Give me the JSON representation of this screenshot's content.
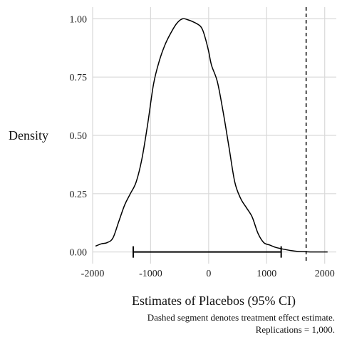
{
  "chart_data": {
    "type": "line",
    "xlabel": "Estimates of Placebos (95% CI)",
    "ylabel": "Density",
    "xlim": [
      -2000,
      2200
    ],
    "ylim": [
      -0.05,
      1.05
    ],
    "x_ticks": [
      -2000,
      -1000,
      0,
      1000,
      2000
    ],
    "x_tick_labels": [
      "-2000",
      "-1000",
      "0",
      "1000",
      "2000"
    ],
    "y_ticks": [
      0,
      0.25,
      0.5,
      0.75,
      1
    ],
    "y_tick_labels": [
      "0.00",
      "0.25",
      "0.50",
      "0.75",
      "1.00"
    ],
    "grid": true,
    "series": [
      {
        "x": [
          -1950,
          -1850,
          -1750,
          -1650,
          -1550,
          -1450,
          -1350,
          -1250,
          -1150,
          -1050,
          -950,
          -850,
          -750,
          -650,
          -550,
          -450,
          -350,
          -250,
          -150,
          -100,
          -50,
          0,
          50,
          150,
          250,
          350,
          450,
          550,
          650,
          750,
          850,
          950,
          1050,
          1150,
          1250,
          1350,
          1450,
          1550,
          1650,
          1750,
          1850,
          1950,
          2050
        ],
        "y": [
          0.025,
          0.035,
          0.04,
          0.06,
          0.13,
          0.2,
          0.25,
          0.3,
          0.4,
          0.55,
          0.72,
          0.82,
          0.89,
          0.94,
          0.98,
          1.0,
          0.995,
          0.985,
          0.97,
          0.95,
          0.91,
          0.86,
          0.8,
          0.73,
          0.6,
          0.45,
          0.3,
          0.23,
          0.19,
          0.15,
          0.08,
          0.04,
          0.03,
          0.02,
          0.014,
          0.009,
          0.005,
          0.002,
          0.001,
          0.0,
          0.0,
          0.0,
          0.0
        ]
      }
    ],
    "confidence_interval": [
      -1300,
      1250
    ],
    "treatment_effect_estimate": 1680
  },
  "caption": {
    "line1": "Dashed segment denotes treatment effect estimate.",
    "line2": "Replications = 1,000."
  }
}
